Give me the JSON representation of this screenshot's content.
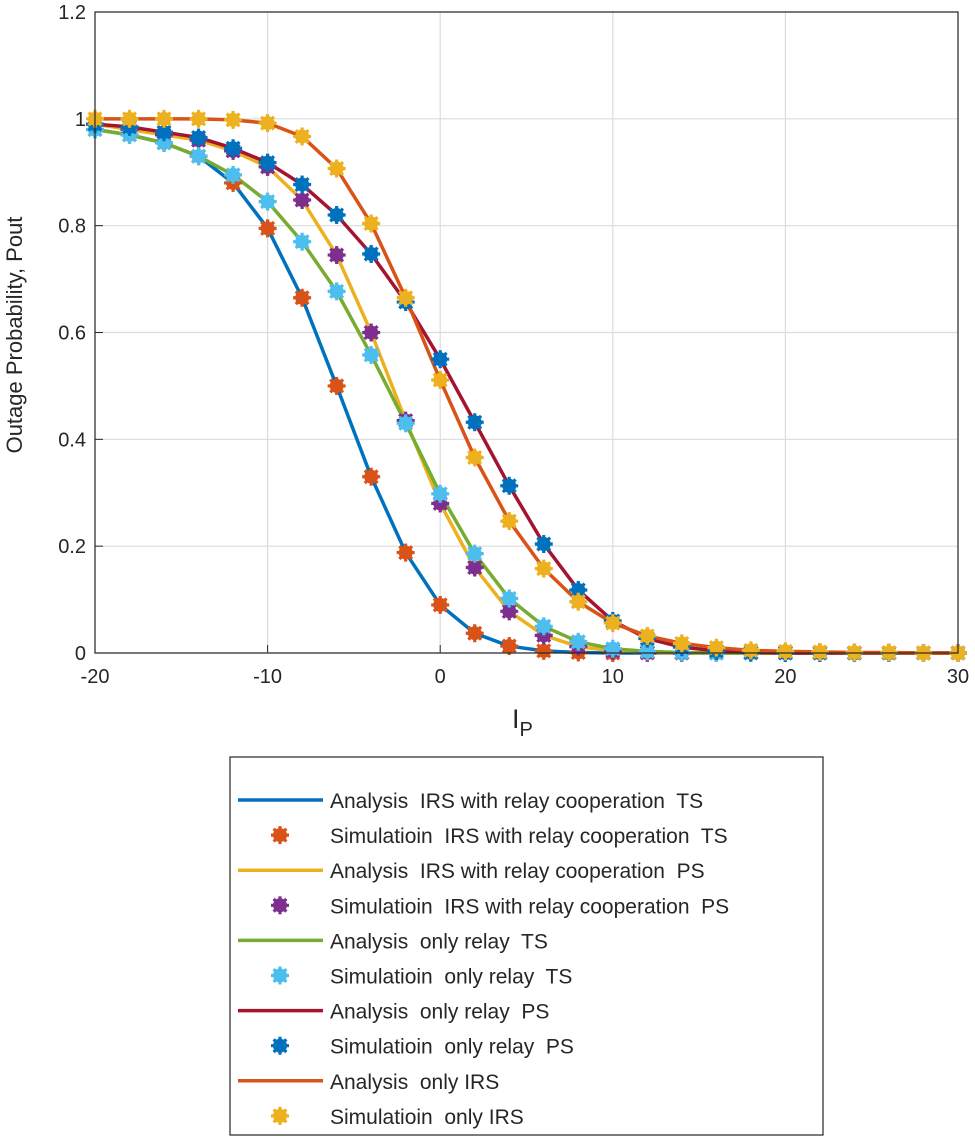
{
  "chart_data": {
    "type": "line",
    "title": "",
    "xlabel": "I",
    "xlabel_sub": "P",
    "ylabel": "Outage Probability, Pout",
    "xlim": [
      -20,
      30
    ],
    "ylim": [
      0,
      1.2
    ],
    "xticks": [
      -20,
      -10,
      0,
      10,
      20,
      30
    ],
    "yticks": [
      0,
      0.2,
      0.4,
      0.6,
      0.8,
      1,
      1.2
    ],
    "ytick_labels": [
      "0",
      "0.2",
      "0.4",
      "0.6",
      "0.8",
      "1",
      "1.2"
    ],
    "grid": true,
    "legend_placement": "below",
    "x": [
      -20,
      -18,
      -16,
      -14,
      -12,
      -10,
      -8,
      -6,
      -4,
      -2,
      0,
      2,
      4,
      6,
      8,
      10,
      12,
      14,
      16,
      18,
      20,
      22,
      24,
      26,
      28,
      30
    ],
    "series": [
      {
        "name": "Analysis  IRS with relay cooperation  TS",
        "kind": "line",
        "color": "#0072BD",
        "values": [
          0.98,
          0.97,
          0.955,
          0.93,
          0.88,
          0.795,
          0.665,
          0.5,
          0.33,
          0.188,
          0.09,
          0.037,
          0.013,
          0.004,
          0.001,
          0,
          0,
          0,
          0,
          0,
          0,
          0,
          0,
          0,
          0,
          0
        ]
      },
      {
        "name": "Simulatioin  IRS with relay cooperation  TS",
        "kind": "marker",
        "color": "#D95319",
        "values": [
          0.98,
          0.97,
          0.955,
          0.93,
          0.88,
          0.795,
          0.665,
          0.5,
          0.33,
          0.188,
          0.09,
          0.037,
          0.013,
          0.004,
          0.001,
          0,
          0,
          0,
          0,
          0,
          0,
          0,
          0,
          0,
          0,
          0
        ]
      },
      {
        "name": "Analysis  IRS with relay cooperation  PS",
        "kind": "line",
        "color": "#EDB120",
        "values": [
          0.99,
          0.98,
          0.97,
          0.96,
          0.94,
          0.91,
          0.848,
          0.745,
          0.6,
          0.435,
          0.28,
          0.16,
          0.078,
          0.033,
          0.012,
          0.004,
          0.001,
          0,
          0,
          0,
          0,
          0,
          0,
          0,
          0,
          0
        ]
      },
      {
        "name": "Simulatioin  IRS with relay cooperation  PS",
        "kind": "marker",
        "color": "#7E2F8E",
        "values": [
          0.99,
          0.98,
          0.97,
          0.96,
          0.94,
          0.91,
          0.848,
          0.745,
          0.6,
          0.435,
          0.28,
          0.16,
          0.078,
          0.033,
          0.012,
          0.004,
          0.001,
          0,
          0,
          0,
          0,
          0,
          0,
          0,
          0,
          0
        ]
      },
      {
        "name": "Analysis  only relay  TS",
        "kind": "line",
        "color": "#77AC30",
        "values": [
          0.98,
          0.97,
          0.955,
          0.93,
          0.895,
          0.845,
          0.77,
          0.677,
          0.558,
          0.43,
          0.298,
          0.186,
          0.102,
          0.05,
          0.021,
          0.008,
          0.003,
          0.001,
          0,
          0,
          0,
          0,
          0,
          0,
          0,
          0
        ]
      },
      {
        "name": "Simulatioin  only relay  TS",
        "kind": "marker",
        "color": "#4DBEEE",
        "values": [
          0.98,
          0.97,
          0.955,
          0.93,
          0.895,
          0.845,
          0.77,
          0.677,
          0.558,
          0.43,
          0.298,
          0.186,
          0.102,
          0.05,
          0.021,
          0.008,
          0.003,
          0.001,
          0,
          0,
          0,
          0,
          0,
          0,
          0,
          0
        ]
      },
      {
        "name": "Analysis  only relay  PS",
        "kind": "line",
        "color": "#A2142F",
        "values": [
          0.99,
          0.985,
          0.975,
          0.965,
          0.945,
          0.918,
          0.877,
          0.82,
          0.747,
          0.657,
          0.55,
          0.432,
          0.313,
          0.204,
          0.118,
          0.06,
          0.027,
          0.011,
          0.004,
          0.001,
          0,
          0,
          0,
          0,
          0,
          0
        ]
      },
      {
        "name": "Simulatioin  only relay  PS",
        "kind": "marker",
        "color": "#0072BD",
        "values": [
          0.99,
          0.985,
          0.975,
          0.965,
          0.945,
          0.918,
          0.877,
          0.82,
          0.747,
          0.657,
          0.55,
          0.432,
          0.313,
          0.204,
          0.118,
          0.06,
          0.027,
          0.011,
          0.004,
          0.001,
          0,
          0,
          0,
          0,
          0,
          0
        ]
      },
      {
        "name": "Analysis  only IRS",
        "kind": "line",
        "color": "#D95319",
        "values": [
          1,
          1,
          1,
          1,
          0.998,
          0.992,
          0.967,
          0.907,
          0.804,
          0.665,
          0.511,
          0.366,
          0.247,
          0.158,
          0.096,
          0.056,
          0.032,
          0.018,
          0.01,
          0.005,
          0.003,
          0.002,
          0.001,
          0.001,
          0,
          0
        ]
      },
      {
        "name": "Simulatioin  only IRS",
        "kind": "marker",
        "color": "#EDB120",
        "values": [
          1,
          1,
          1,
          1,
          0.998,
          0.992,
          0.967,
          0.907,
          0.804,
          0.665,
          0.511,
          0.366,
          0.247,
          0.158,
          0.096,
          0.056,
          0.032,
          0.018,
          0.01,
          0.005,
          0.003,
          0.002,
          0.001,
          0.001,
          0,
          0
        ]
      }
    ]
  }
}
